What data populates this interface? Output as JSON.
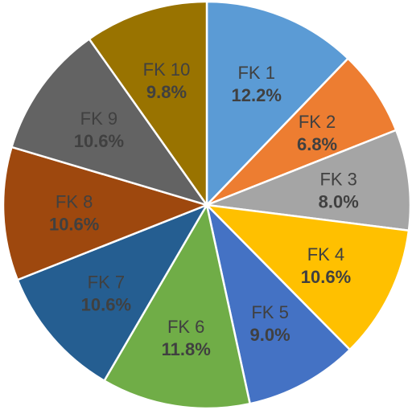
{
  "chart_data": {
    "type": "pie",
    "title": "",
    "start_angle_deg": 0,
    "direction": "clockwise",
    "legend": "none",
    "slices": [
      {
        "label": "FK 1",
        "value": 12.2,
        "value_label": "12.2%",
        "color": "#5B9BD5",
        "text_color": "#404040"
      },
      {
        "label": "FK 2",
        "value": 6.8,
        "value_label": "6.8%",
        "color": "#ED7D31",
        "text_color": "#404040"
      },
      {
        "label": "FK 3",
        "value": 8.0,
        "value_label": "8.0%",
        "color": "#A5A5A5",
        "text_color": "#404040"
      },
      {
        "label": "FK 4",
        "value": 10.6,
        "value_label": "10.6%",
        "color": "#FFC000",
        "text_color": "#404040"
      },
      {
        "label": "FK 5",
        "value": 9.0,
        "value_label": "9.0%",
        "color": "#4472C4",
        "text_color": "#404040"
      },
      {
        "label": "FK 6",
        "value": 11.8,
        "value_label": "11.8%",
        "color": "#70AD47",
        "text_color": "#404040"
      },
      {
        "label": "FK 7",
        "value": 10.6,
        "value_label": "10.6%",
        "color": "#255E91",
        "text_color": "#404040"
      },
      {
        "label": "FK 8",
        "value": 10.6,
        "value_label": "10.6%",
        "color": "#9E480E",
        "text_color": "#404040"
      },
      {
        "label": "FK 9",
        "value": 10.6,
        "value_label": "10.6%",
        "color": "#636363",
        "text_color": "#404040"
      },
      {
        "label": "FK 10",
        "value": 9.8,
        "value_label": "9.8%",
        "color": "#997300",
        "text_color": "#404040"
      }
    ]
  }
}
